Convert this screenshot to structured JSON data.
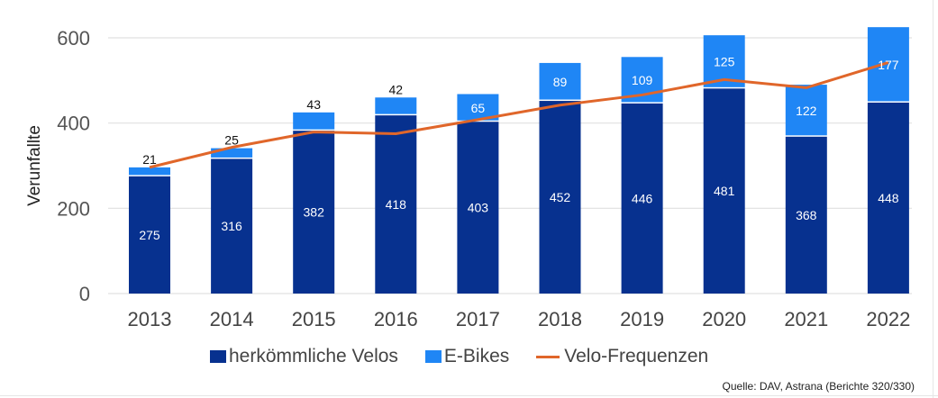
{
  "chart_data": {
    "type": "bar",
    "stacked": true,
    "title": "",
    "xlabel": "",
    "ylabel": "Verunfallte",
    "ylim": [
      0,
      600
    ],
    "yticks": [
      0,
      200,
      400,
      600
    ],
    "grid": true,
    "categories": [
      "2013",
      "2014",
      "2015",
      "2016",
      "2017",
      "2018",
      "2019",
      "2020",
      "2021",
      "2022"
    ],
    "series": [
      {
        "name": "herkömmliche Velos",
        "type": "bar",
        "color": "#07318f",
        "values": [
          275,
          316,
          382,
          418,
          403,
          452,
          446,
          481,
          368,
          448
        ]
      },
      {
        "name": "E-Bikes",
        "type": "bar",
        "color": "#1f86f5",
        "values": [
          21,
          25,
          43,
          42,
          65,
          89,
          109,
          125,
          122,
          177
        ]
      },
      {
        "name": "Velo-Frequenzen",
        "type": "line",
        "color": "#e0662a",
        "values": [
          296,
          343,
          379,
          375,
          408,
          442,
          466,
          502,
          483,
          542
        ],
        "estimated": true
      }
    ],
    "legend_position": "bottom",
    "source": "Quelle: DAV, Astrana (Berichte 320/330)"
  }
}
